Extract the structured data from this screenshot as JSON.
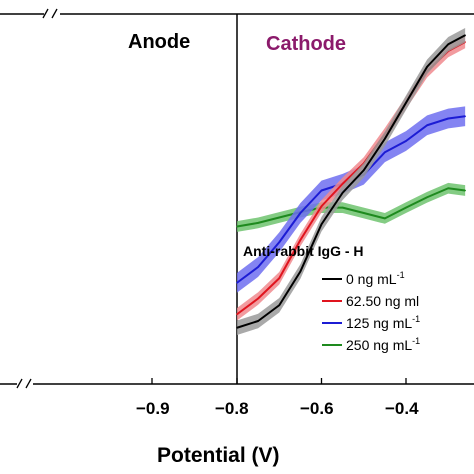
{
  "chart_data": {
    "type": "line",
    "xlabel": "Potential (V)",
    "ylabel": "",
    "xlim_right_segment": [
      -0.8,
      -0.25
    ],
    "xlim_left_segment": [
      -1.25,
      -0.8
    ],
    "x_ticks": [
      {
        "value": -0.9,
        "label": "−0.9"
      },
      {
        "value": -0.8,
        "label": "−0.8"
      },
      {
        "value": -0.6,
        "label": "−0.6"
      },
      {
        "value": -0.4,
        "label": "−0.4"
      }
    ],
    "axis_break": true,
    "regions": [
      {
        "label": "Anode",
        "color": "#000000"
      },
      {
        "label": "Cathode",
        "color": "#8b1a6b"
      }
    ],
    "legend": {
      "title": "Anti-rabbit IgG - H",
      "placement": "right"
    },
    "series": [
      {
        "name": "0 ng mL⁻¹",
        "label_text": "0 ng mL",
        "label_sup": "-1",
        "color": "#000000",
        "band_color": "#9a9a9a",
        "band_half_width": 0.16,
        "x": [
          -0.8,
          -0.75,
          -0.7,
          -0.65,
          -0.6,
          -0.55,
          -0.5,
          -0.45,
          -0.4,
          -0.35,
          -0.3,
          -0.26
        ],
        "y": [
          0.05,
          0.2,
          0.55,
          1.3,
          2.35,
          3.05,
          3.55,
          4.25,
          5.05,
          5.85,
          6.35,
          6.55
        ]
      },
      {
        "name": "62.50 ng mL⁻¹",
        "label_text": "62.50 ng ml",
        "label_sup": "",
        "color": "#e0141e",
        "band_color": "#f08a8e",
        "band_half_width": 0.14,
        "x": [
          -0.8,
          -0.75,
          -0.7,
          -0.65,
          -0.6,
          -0.55,
          -0.5,
          -0.45,
          -0.4,
          -0.35,
          -0.3,
          -0.26
        ],
        "y": [
          0.35,
          0.7,
          1.15,
          2.0,
          2.75,
          3.25,
          3.7,
          4.35,
          5.05,
          5.75,
          6.2,
          6.4
        ]
      },
      {
        "name": "125 ng mL⁻¹",
        "label_text": "125 ng mL",
        "label_sup": "-1",
        "color": "#1c1cd4",
        "band_color": "#6f6ff0",
        "band_half_width": 0.22,
        "x": [
          -0.8,
          -0.75,
          -0.7,
          -0.65,
          -0.6,
          -0.55,
          -0.5,
          -0.45,
          -0.4,
          -0.35,
          -0.3,
          -0.26
        ],
        "y": [
          1.05,
          1.4,
          1.95,
          2.6,
          3.1,
          3.25,
          3.45,
          3.95,
          4.2,
          4.55,
          4.7,
          4.75
        ]
      },
      {
        "name": "250 ng mL⁻¹",
        "label_text": "250 ng mL",
        "label_sup": "-1",
        "color": "#1e8a1e",
        "band_color": "#6fc36f",
        "band_half_width": 0.12,
        "x": [
          -0.8,
          -0.75,
          -0.7,
          -0.65,
          -0.6,
          -0.55,
          -0.5,
          -0.45,
          -0.4,
          -0.35,
          -0.3,
          -0.26
        ],
        "y": [
          2.3,
          2.38,
          2.5,
          2.62,
          2.72,
          2.72,
          2.6,
          2.48,
          2.72,
          2.95,
          3.15,
          3.1
        ]
      }
    ]
  }
}
